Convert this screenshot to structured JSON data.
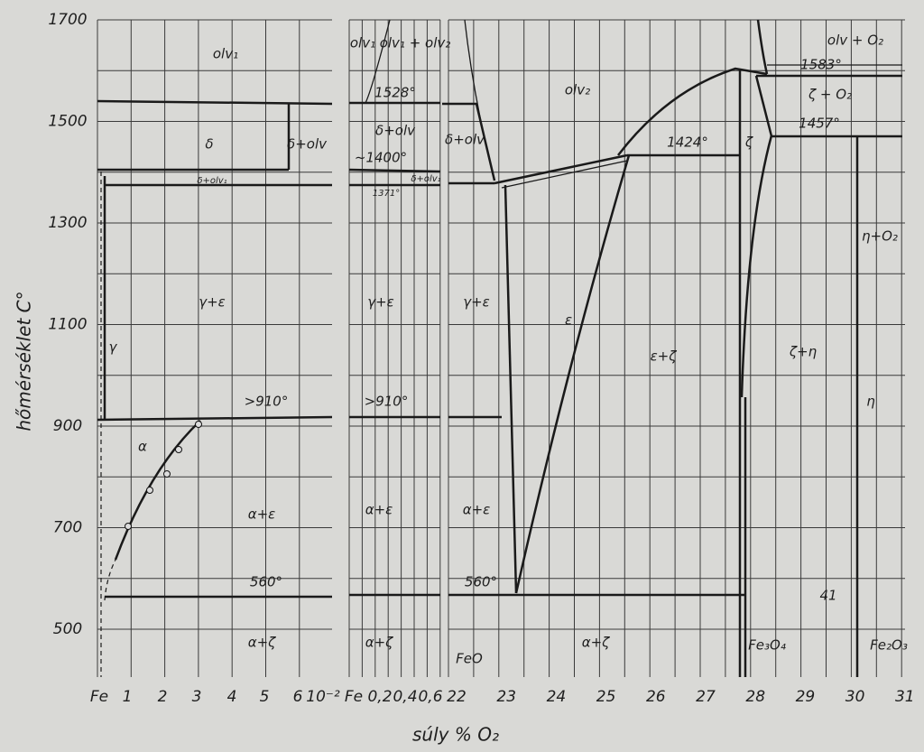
{
  "axes": {
    "y_label": "hőmérséklet  C°",
    "x_label": "súly % O₂",
    "y_ticks": [
      "1700",
      "1500",
      "1300",
      "1100",
      "900",
      "700",
      "500"
    ],
    "x_ticks_panel1": [
      "Fe",
      "1",
      "2",
      "3",
      "4",
      "5",
      "6",
      "10⁻²"
    ],
    "x_ticks_panel2": [
      "Fe",
      "0,2",
      "0,4",
      "0,6"
    ],
    "x_ticks_panel3": [
      "22",
      "23",
      "24",
      "25",
      "26",
      "27",
      "28",
      "29",
      "30",
      "31"
    ]
  },
  "labels": [
    "olv₁",
    "δ",
    "δ+olv",
    "δ+olv₁",
    "γ+ε",
    "γ",
    ">910°",
    "α",
    "α+ε",
    "560°",
    "α+ζ",
    "olv₁",
    "olv₁ + olv₂",
    "1528°",
    "δ+olv",
    "~1400°",
    "δ+olv₁",
    "1371°",
    "γ+ε",
    ">910°",
    "α+ε",
    "α+ζ",
    "δ+olv",
    "γ+ε",
    "α+ε",
    "560°",
    "FeO",
    "olv₂",
    "1424°",
    "ε",
    "ε+ζ",
    "ζ",
    "olv + O₂",
    "1583°",
    "ζ + O₂",
    "1457°",
    "η+O₂",
    "ζ+η",
    "η",
    "α+ζ",
    "Fe₃O₄",
    "Fe₂O₃",
    "41"
  ]
}
